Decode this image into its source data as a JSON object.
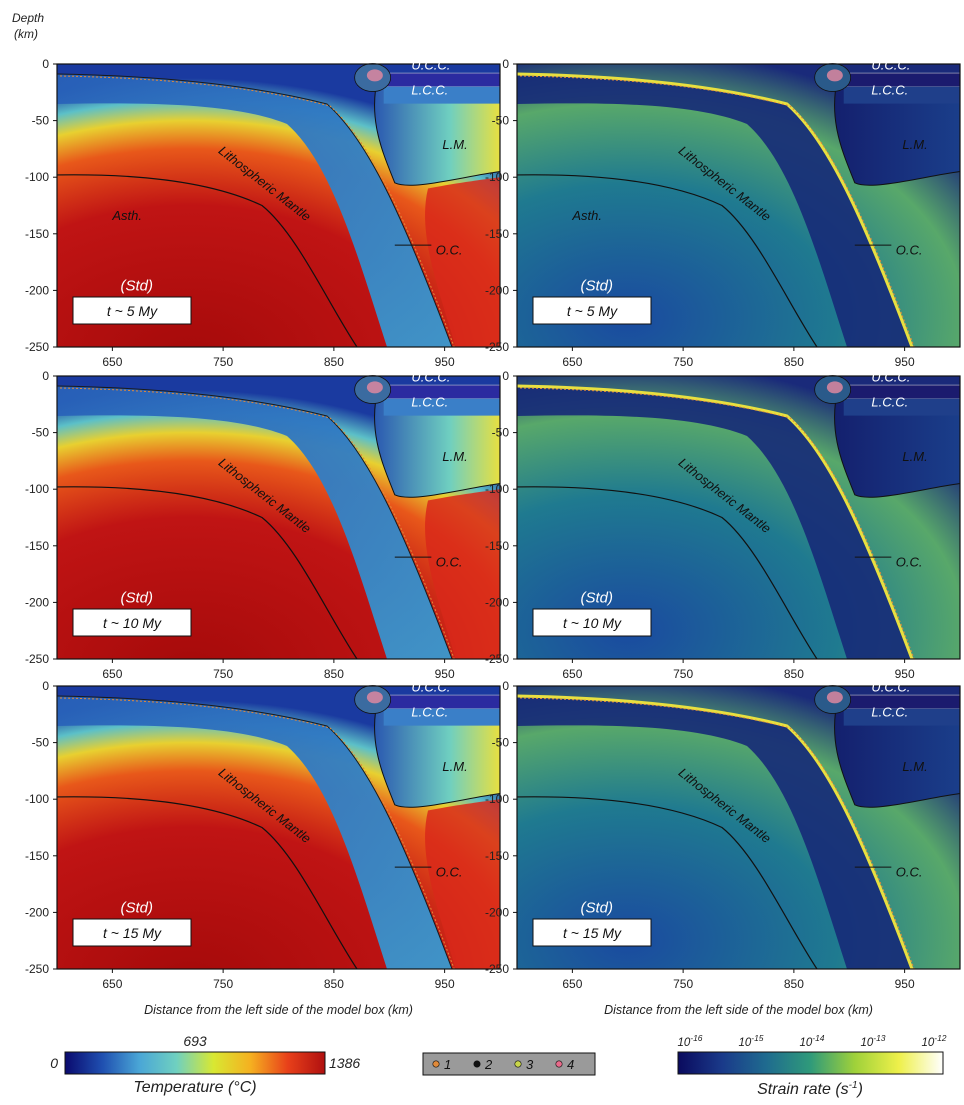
{
  "figure": {
    "y_axis": {
      "title_line1": "Depth",
      "title_line2": "(km)",
      "ticks": [
        "0",
        "-50",
        "-100",
        "-150",
        "-200",
        "-250"
      ]
    },
    "x_axis": {
      "ticks": [
        "650",
        "750",
        "850",
        "950"
      ],
      "title": "Distance from the left side of the model box (km)"
    },
    "labels": {
      "ucc": "U.C.C.",
      "lcc": "L.C.C.",
      "lm": "L.M.",
      "oc": "O.C.",
      "asth": "Asth.",
      "lith": "Lithospheric Mantle",
      "std": "(Std)"
    },
    "panels": [
      {
        "col": "temperature",
        "time": "t ~ 5 My",
        "show_asth": true
      },
      {
        "col": "strain",
        "time": "t ~ 5 My",
        "show_asth": true
      },
      {
        "col": "temperature",
        "time": "t ~ 10 My",
        "show_asth": false
      },
      {
        "col": "strain",
        "time": "t ~ 10 My",
        "show_asth": false
      },
      {
        "col": "temperature",
        "time": "t ~ 15 My",
        "show_asth": false
      },
      {
        "col": "strain",
        "time": "t ~ 15 My",
        "show_asth": false
      }
    ]
  },
  "temperature_bar": {
    "min": "0",
    "mid": "693",
    "max": "1386",
    "title": "Temperature (°C)",
    "colors": [
      "#0a0a6e",
      "#1f4fb0",
      "#4aa6d6",
      "#6fd0c0",
      "#d8e832",
      "#f5b020",
      "#e8401a",
      "#b01010"
    ]
  },
  "markers_legend": {
    "items": [
      {
        "num": "1",
        "color": "#e08a3a"
      },
      {
        "num": "2",
        "color": "#111111"
      },
      {
        "num": "3",
        "color": "#c9d64a"
      },
      {
        "num": "4",
        "color": "#e86a8a"
      }
    ]
  },
  "strain_bar": {
    "ticks": [
      "10",
      "10",
      "10",
      "10",
      "10"
    ],
    "exponents": [
      "-16",
      "-15",
      "-14",
      "-13",
      "-12"
    ],
    "title": "Strain rate (s",
    "title_exp": "-1",
    "title_end": ")",
    "colors": [
      "#0a0a5e",
      "#1a3a8a",
      "#1f6b8f",
      "#2f9a7a",
      "#9fd13a",
      "#eef04a",
      "#ffffff"
    ]
  }
}
